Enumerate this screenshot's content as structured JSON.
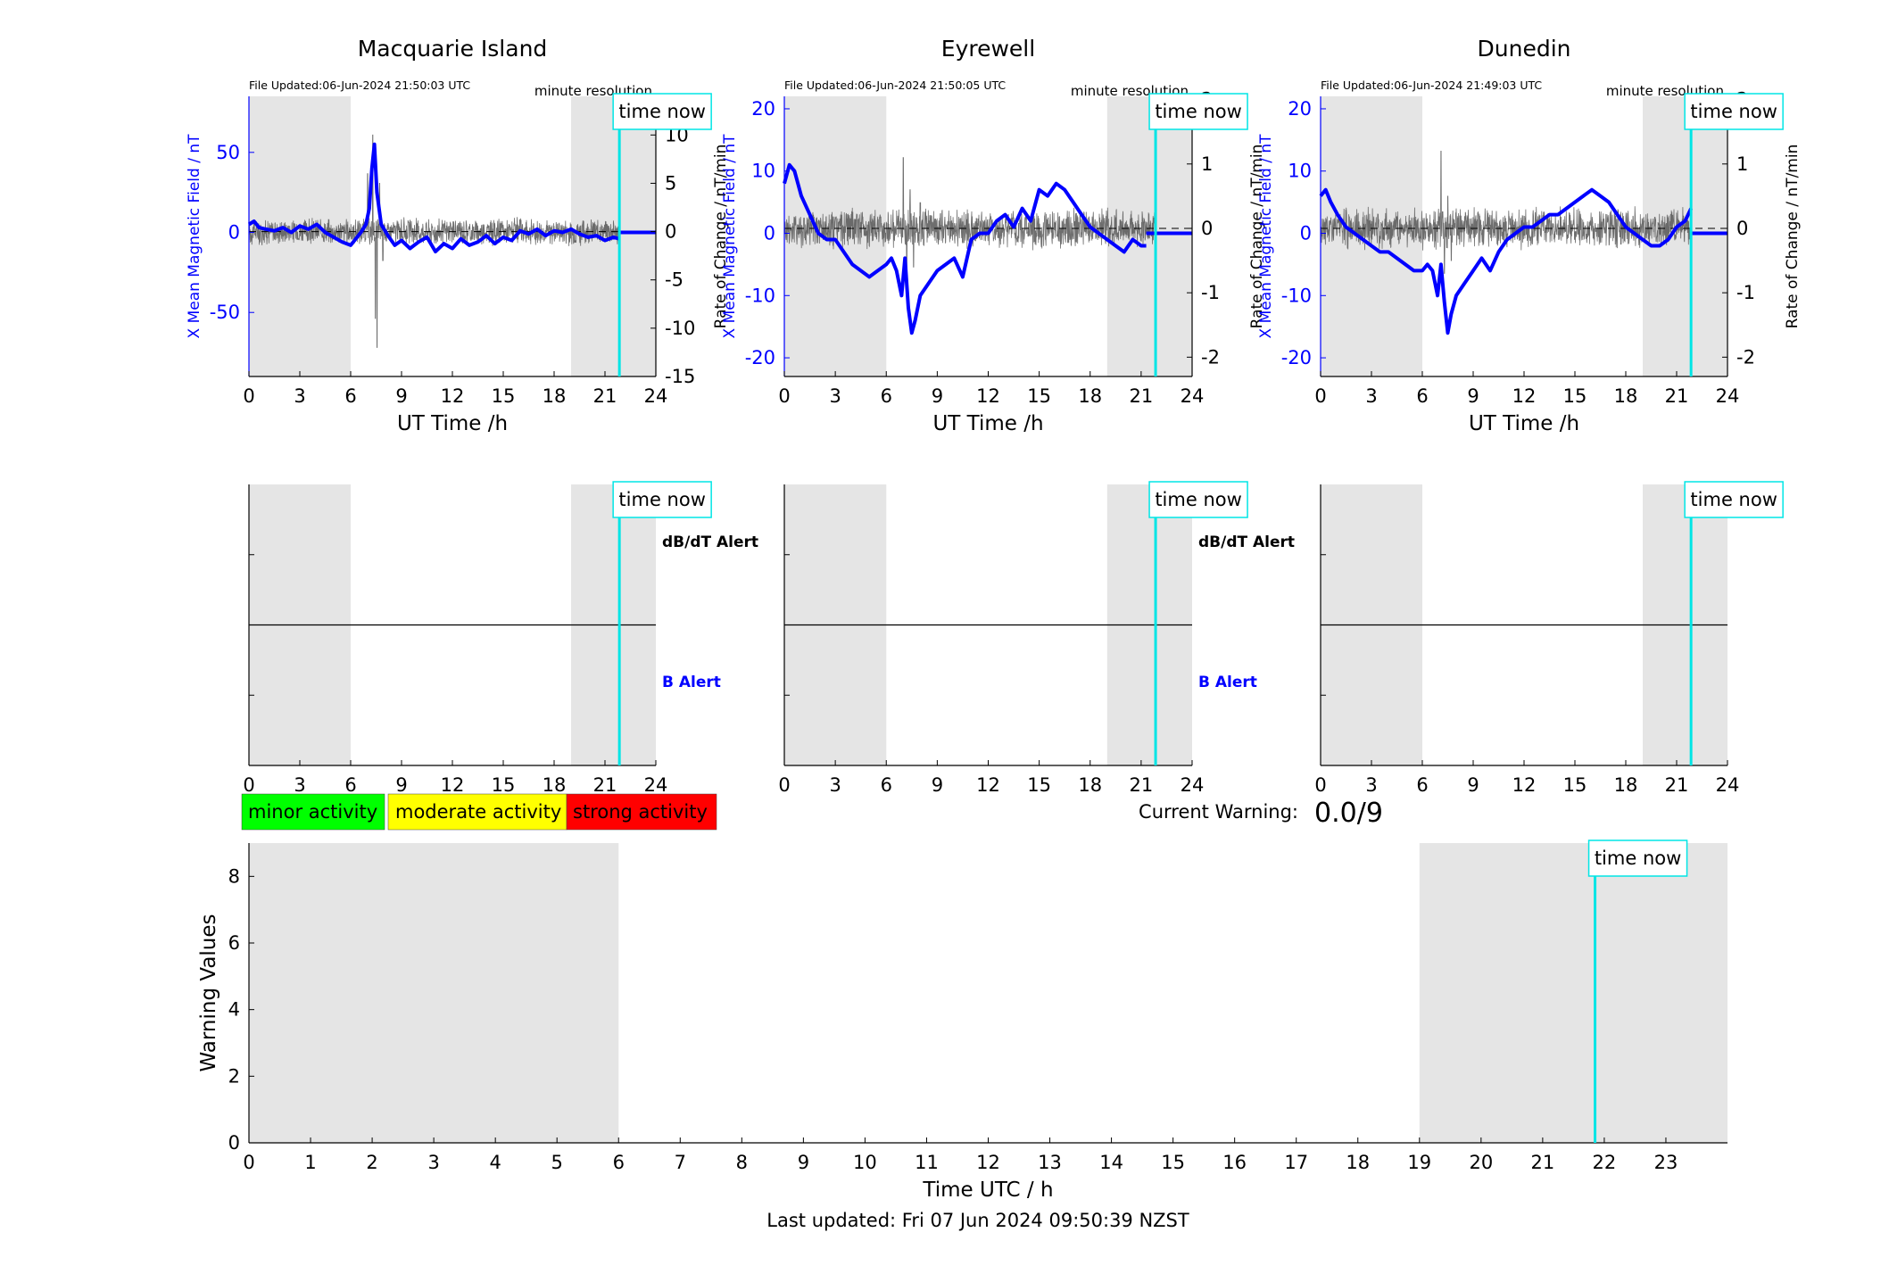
{
  "footer": {
    "last_updated": "Last updated: Fri 07 Jun 2024 09:50:39 NZST"
  },
  "colors": {
    "b_trace": "#0000ff",
    "dbdt_trace": "#555555",
    "time_now": "#00e5e5",
    "shade": "#e5e5e5",
    "minor": "#00ff00",
    "moderate": "#ffff00",
    "strong": "#ff0000"
  },
  "chart_data": [
    {
      "type": "line",
      "title": "Macquarie Island",
      "file_updated": "File Updated:06-Jun-2024 21:50:03 UTC",
      "resolution_label": "minute resolution",
      "time_now_label": "time now",
      "xlabel": "UT Time /h",
      "ylabel_left": "X Mean Magnetic Field / nT",
      "ylabel_right": "Rate of Change / nT/min",
      "xlim": [
        0,
        24
      ],
      "xticks": [
        0,
        3,
        6,
        9,
        12,
        15,
        18,
        21,
        24
      ],
      "ylim_left": [
        -90,
        85
      ],
      "yticks_left": [
        -50,
        0,
        50
      ],
      "ylim_right": [
        -15,
        14
      ],
      "yticks_right": [
        -15,
        -10,
        -5,
        0,
        5,
        10
      ],
      "shaded_ranges": [
        [
          0,
          6
        ],
        [
          19,
          24
        ]
      ],
      "time_now": 21.85,
      "noise_amplitude_right": 1.1,
      "b_series": {
        "name": "X Mean Magnetic Field",
        "x": [
          0,
          0.3,
          0.6,
          1,
          1.5,
          2,
          2.5,
          3,
          3.5,
          4,
          4.5,
          5,
          5.5,
          6,
          6.3,
          6.6,
          6.9,
          7.1,
          7.25,
          7.4,
          7.55,
          7.8,
          8.2,
          8.6,
          9,
          9.5,
          10,
          10.5,
          11,
          11.5,
          12,
          12.5,
          13,
          13.5,
          14,
          14.5,
          15,
          15.5,
          16,
          16.5,
          17,
          17.5,
          18,
          18.5,
          19,
          19.5,
          20,
          20.5,
          21,
          21.5,
          21.85
        ],
        "y": [
          5,
          7,
          3,
          2,
          1,
          3,
          0,
          4,
          2,
          5,
          0,
          -3,
          -6,
          -8,
          -4,
          0,
          5,
          15,
          40,
          55,
          25,
          5,
          -2,
          -8,
          -5,
          -10,
          -6,
          -3,
          -12,
          -7,
          -10,
          -4,
          -8,
          -6,
          -2,
          -7,
          -3,
          -5,
          1,
          -1,
          2,
          -2,
          1,
          0,
          2,
          -1,
          -3,
          -2,
          -5,
          -3,
          -4
        ]
      },
      "dbdt_spikes": [
        [
          7.0,
          6
        ],
        [
          7.3,
          10
        ],
        [
          7.45,
          -9
        ],
        [
          7.55,
          -12
        ],
        [
          7.7,
          5
        ],
        [
          7.9,
          -3
        ]
      ],
      "flat_after": 0
    },
    {
      "type": "line",
      "title": "Eyrewell",
      "file_updated": "File Updated:06-Jun-2024 21:50:05 UTC",
      "resolution_label": "minute resolution",
      "time_now_label": "time now",
      "xlabel": "UT Time /h",
      "ylabel_left": "X Mean Magnetic Field / nT",
      "ylabel_right": "Rate of Change / nT/min",
      "xlim": [
        0,
        24
      ],
      "xticks": [
        0,
        3,
        6,
        9,
        12,
        15,
        18,
        21,
        24
      ],
      "ylim_left": [
        -23,
        22
      ],
      "yticks_left": [
        -20,
        -10,
        0,
        10,
        20
      ],
      "ylim_right": [
        -2.3,
        2.05
      ],
      "yticks_right": [
        -2,
        -1,
        0,
        1,
        2
      ],
      "shaded_ranges": [
        [
          0,
          6
        ],
        [
          19,
          24
        ]
      ],
      "time_now": 21.85,
      "noise_amplitude_right": 0.25,
      "b_series": {
        "name": "X Mean Magnetic Field",
        "x": [
          0,
          0.3,
          0.6,
          1,
          1.5,
          2,
          2.5,
          3,
          3.5,
          4,
          4.5,
          5,
          5.5,
          6,
          6.3,
          6.6,
          6.9,
          7.1,
          7.3,
          7.5,
          7.7,
          8,
          8.5,
          9,
          9.5,
          10,
          10.5,
          11,
          11.5,
          12,
          12.5,
          13,
          13.5,
          14,
          14.5,
          15,
          15.5,
          16,
          16.5,
          17,
          17.5,
          18,
          18.5,
          19,
          19.5,
          20,
          20.5,
          21,
          21.3
        ],
        "y": [
          8,
          11,
          10,
          6,
          3,
          0,
          -1,
          -1,
          -3,
          -5,
          -6,
          -7,
          -6,
          -5,
          -4,
          -6,
          -10,
          -4,
          -12,
          -16,
          -14,
          -10,
          -8,
          -6,
          -5,
          -4,
          -7,
          -1,
          0,
          0,
          2,
          3,
          1,
          4,
          2,
          7,
          6,
          8,
          7,
          5,
          3,
          1,
          0,
          -1,
          -2,
          -3,
          -1,
          -2,
          -2
        ],
        "flat_from": 21.3,
        "flat_value": 0
      },
      "dbdt_spikes": [
        [
          7.0,
          1.1
        ],
        [
          7.2,
          -0.8
        ],
        [
          7.4,
          0.6
        ],
        [
          7.6,
          -0.6
        ],
        [
          8,
          0.4
        ]
      ]
    },
    {
      "type": "line",
      "title": "Dunedin",
      "file_updated": "File Updated:06-Jun-2024 21:49:03 UTC",
      "resolution_label": "minute resolution",
      "time_now_label": "time now",
      "xlabel": "UT Time /h",
      "ylabel_left": "X Mean Magnetic Field / nT",
      "ylabel_right": "Rate of Change / nT/min",
      "xlim": [
        0,
        24
      ],
      "xticks": [
        0,
        3,
        6,
        9,
        12,
        15,
        18,
        21,
        24
      ],
      "ylim_left": [
        -23,
        22
      ],
      "yticks_left": [
        -20,
        -10,
        0,
        10,
        20
      ],
      "ylim_right": [
        -2.3,
        2.05
      ],
      "yticks_right": [
        -2,
        -1,
        0,
        1,
        2
      ],
      "shaded_ranges": [
        [
          0,
          6
        ],
        [
          19,
          24
        ]
      ],
      "time_now": 21.85,
      "noise_amplitude_right": 0.25,
      "b_series": {
        "name": "X Mean Magnetic Field",
        "x": [
          0,
          0.3,
          0.6,
          1,
          1.5,
          2,
          2.5,
          3,
          3.5,
          4,
          4.5,
          5,
          5.5,
          6,
          6.3,
          6.6,
          6.9,
          7.1,
          7.3,
          7.5,
          7.7,
          8,
          8.5,
          9,
          9.5,
          10,
          10.5,
          11,
          11.5,
          12,
          12.5,
          13,
          13.5,
          14,
          14.5,
          15,
          15.5,
          16,
          16.5,
          17,
          17.5,
          18,
          18.5,
          19,
          19.5,
          20,
          20.5,
          21,
          21.5,
          21.85
        ],
        "y": [
          6,
          7,
          5,
          3,
          1,
          0,
          -1,
          -2,
          -3,
          -3,
          -4,
          -5,
          -6,
          -6,
          -5,
          -6,
          -10,
          -5,
          -11,
          -16,
          -13,
          -10,
          -8,
          -6,
          -4,
          -6,
          -3,
          -1,
          0,
          1,
          1,
          2,
          3,
          3,
          4,
          5,
          6,
          7,
          6,
          5,
          3,
          1,
          0,
          -1,
          -2,
          -2,
          -1,
          1,
          2,
          4
        ],
        "flat_from": 21.85,
        "flat_value": 0
      },
      "dbdt_spikes": [
        [
          7.1,
          1.2
        ],
        [
          7.3,
          -0.7
        ],
        [
          7.5,
          0.5
        ],
        [
          7.7,
          -0.5
        ]
      ]
    }
  ],
  "alert_panels": [
    {
      "dbdt_label": "dB/dT Alert",
      "b_label": "B Alert",
      "time_now_label": "time now",
      "xlim": [
        0,
        24
      ],
      "xticks": [
        0,
        3,
        6,
        9,
        12,
        15,
        18,
        21,
        24
      ],
      "shaded_ranges": [
        [
          0,
          6
        ],
        [
          19,
          24
        ]
      ],
      "time_now": 21.85
    },
    {
      "dbdt_label": "dB/dT Alert",
      "b_label": "B Alert",
      "time_now_label": "time now",
      "xlim": [
        0,
        24
      ],
      "xticks": [
        0,
        3,
        6,
        9,
        12,
        15,
        18,
        21,
        24
      ],
      "shaded_ranges": [
        [
          0,
          6
        ],
        [
          19,
          24
        ]
      ],
      "time_now": 21.85
    },
    {
      "dbdt_label": "",
      "b_label": "",
      "time_now_label": "time now",
      "xlim": [
        0,
        24
      ],
      "xticks": [
        0,
        3,
        6,
        9,
        12,
        15,
        18,
        21,
        24
      ],
      "shaded_ranges": [
        [
          0,
          6
        ],
        [
          19,
          24
        ]
      ],
      "time_now": 21.85
    }
  ],
  "legend": {
    "minor": "minor activity",
    "moderate": "moderate activity",
    "strong": "strong activity"
  },
  "current_warning": {
    "label": "Current Warning:",
    "value": "0.0/9"
  },
  "warning_chart": {
    "type": "bar",
    "xlabel": "Time UTC / h",
    "ylabel": "Warning Values",
    "xlim": [
      0,
      24
    ],
    "xticks": [
      0,
      1,
      2,
      3,
      4,
      5,
      6,
      7,
      8,
      9,
      10,
      11,
      12,
      13,
      14,
      15,
      16,
      17,
      18,
      19,
      20,
      21,
      22,
      23
    ],
    "ylim": [
      0,
      9
    ],
    "yticks": [
      0,
      2,
      4,
      6,
      8
    ],
    "shaded_ranges": [
      [
        0,
        6
      ],
      [
        19,
        24
      ]
    ],
    "time_now": 21.85,
    "time_now_label": "time now",
    "values": []
  }
}
